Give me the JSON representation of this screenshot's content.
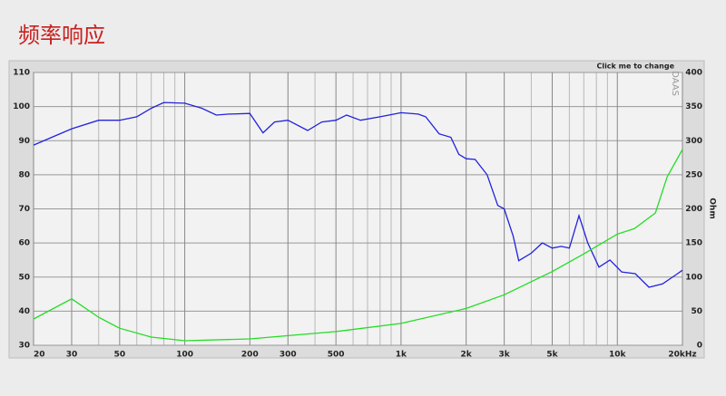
{
  "chart_data": {
    "type": "line",
    "title": "频率响应",
    "annotation": "Click me to change",
    "watermark": "DAAS",
    "y2label": "Ohm",
    "xlog": true,
    "grid": true,
    "xlim": [
      20,
      20000
    ],
    "xticks": [
      20,
      30,
      50,
      100,
      200,
      300,
      500,
      {
        "value": 1000,
        "label": "1k"
      },
      {
        "value": 2000,
        "label": "2k"
      },
      {
        "value": 3000,
        "label": "3k"
      },
      {
        "value": 5000,
        "label": "5k"
      },
      {
        "value": 10000,
        "label": "10k"
      },
      {
        "value": 20000,
        "label": "20kHz"
      }
    ],
    "xminor": [
      40,
      60,
      70,
      80,
      90,
      400,
      600,
      700,
      800,
      900,
      4000,
      6000,
      7000,
      8000,
      9000
    ],
    "ylim": [
      30,
      110
    ],
    "yticks": [
      30,
      40,
      50,
      60,
      70,
      80,
      90,
      100,
      110
    ],
    "y2lim": [
      0,
      400
    ],
    "y2ticks": [
      0,
      50,
      100,
      150,
      200,
      250,
      300,
      350,
      400
    ],
    "series": [
      {
        "color": "#2222dd",
        "x": [
          20,
          30,
          40,
          50,
          60,
          70,
          80,
          100,
          120,
          140,
          160,
          200,
          230,
          260,
          300,
          370,
          430,
          500,
          560,
          650,
          800,
          1000,
          1200,
          1300,
          1500,
          1700,
          1850,
          2000,
          2200,
          2500,
          2800,
          3000,
          3300,
          3500,
          4000,
          4500,
          5000,
          5500,
          6000,
          6650,
          7300,
          8220,
          9240,
          10480,
          12100,
          14000,
          16180,
          18700,
          20000
        ],
        "values": [
          88.7,
          93.5,
          96,
          96,
          97,
          99.5,
          101.2,
          101,
          99.5,
          97.5,
          97.8,
          98,
          92.3,
          95.5,
          96,
          93,
          95.5,
          96,
          97.5,
          96,
          97,
          98.2,
          97.8,
          97,
          92,
          91,
          86,
          84.7,
          84.5,
          80,
          71,
          70,
          62,
          54.8,
          57,
          60,
          58.5,
          59,
          58.5,
          68,
          60,
          52.9,
          55,
          51.5,
          51,
          47,
          48,
          50.7,
          52
        ]
      },
      {
        "color": "#22dd22",
        "axis": "y2",
        "x": [
          20,
          30,
          40,
          50,
          70,
          100,
          200,
          500,
          1000,
          2000,
          3000,
          5000,
          7000,
          10000,
          12000,
          15000,
          17000,
          20000
        ],
        "values": [
          38.5,
          68,
          41,
          25,
          12,
          6.6,
          9.3,
          20,
          32,
          54,
          74,
          108,
          134,
          163,
          171,
          194,
          247,
          287
        ]
      }
    ]
  }
}
